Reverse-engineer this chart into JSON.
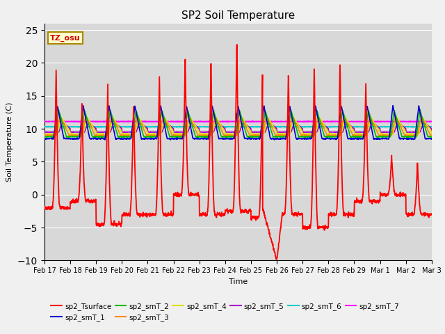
{
  "title": "SP2 Soil Temperature",
  "ylabel": "Soil Temperature (C)",
  "xlabel": "Time",
  "ylim": [
    -10,
    26
  ],
  "yticks": [
    -10,
    -5,
    0,
    5,
    10,
    15,
    20,
    25
  ],
  "xtick_labels": [
    "Feb 17",
    "Feb 18",
    "Feb 19",
    "Feb 20",
    "Feb 21",
    "Feb 22",
    "Feb 23",
    "Feb 24",
    "Feb 25",
    "Feb 26",
    "Feb 27",
    "Feb 28",
    "Feb 29",
    "Mar 1",
    "Mar 2",
    "Mar 3"
  ],
  "axes_bg": "#d8d8d8",
  "series_colors": {
    "sp2_Tsurface": "#ff0000",
    "sp2_smT_1": "#0000cc",
    "sp2_smT_2": "#00bb00",
    "sp2_smT_3": "#ff8800",
    "sp2_smT_4": "#dddd00",
    "sp2_smT_5": "#aa00cc",
    "sp2_smT_6": "#00cccc",
    "sp2_smT_7": "#ff00ff"
  },
  "annotation_text": "TZ_osu",
  "annotation_color": "#cc0000",
  "annotation_bg": "#ffffcc",
  "annotation_border": "#aa8800",
  "smT_6_level": 10.3,
  "smT_7_level": 11.1
}
